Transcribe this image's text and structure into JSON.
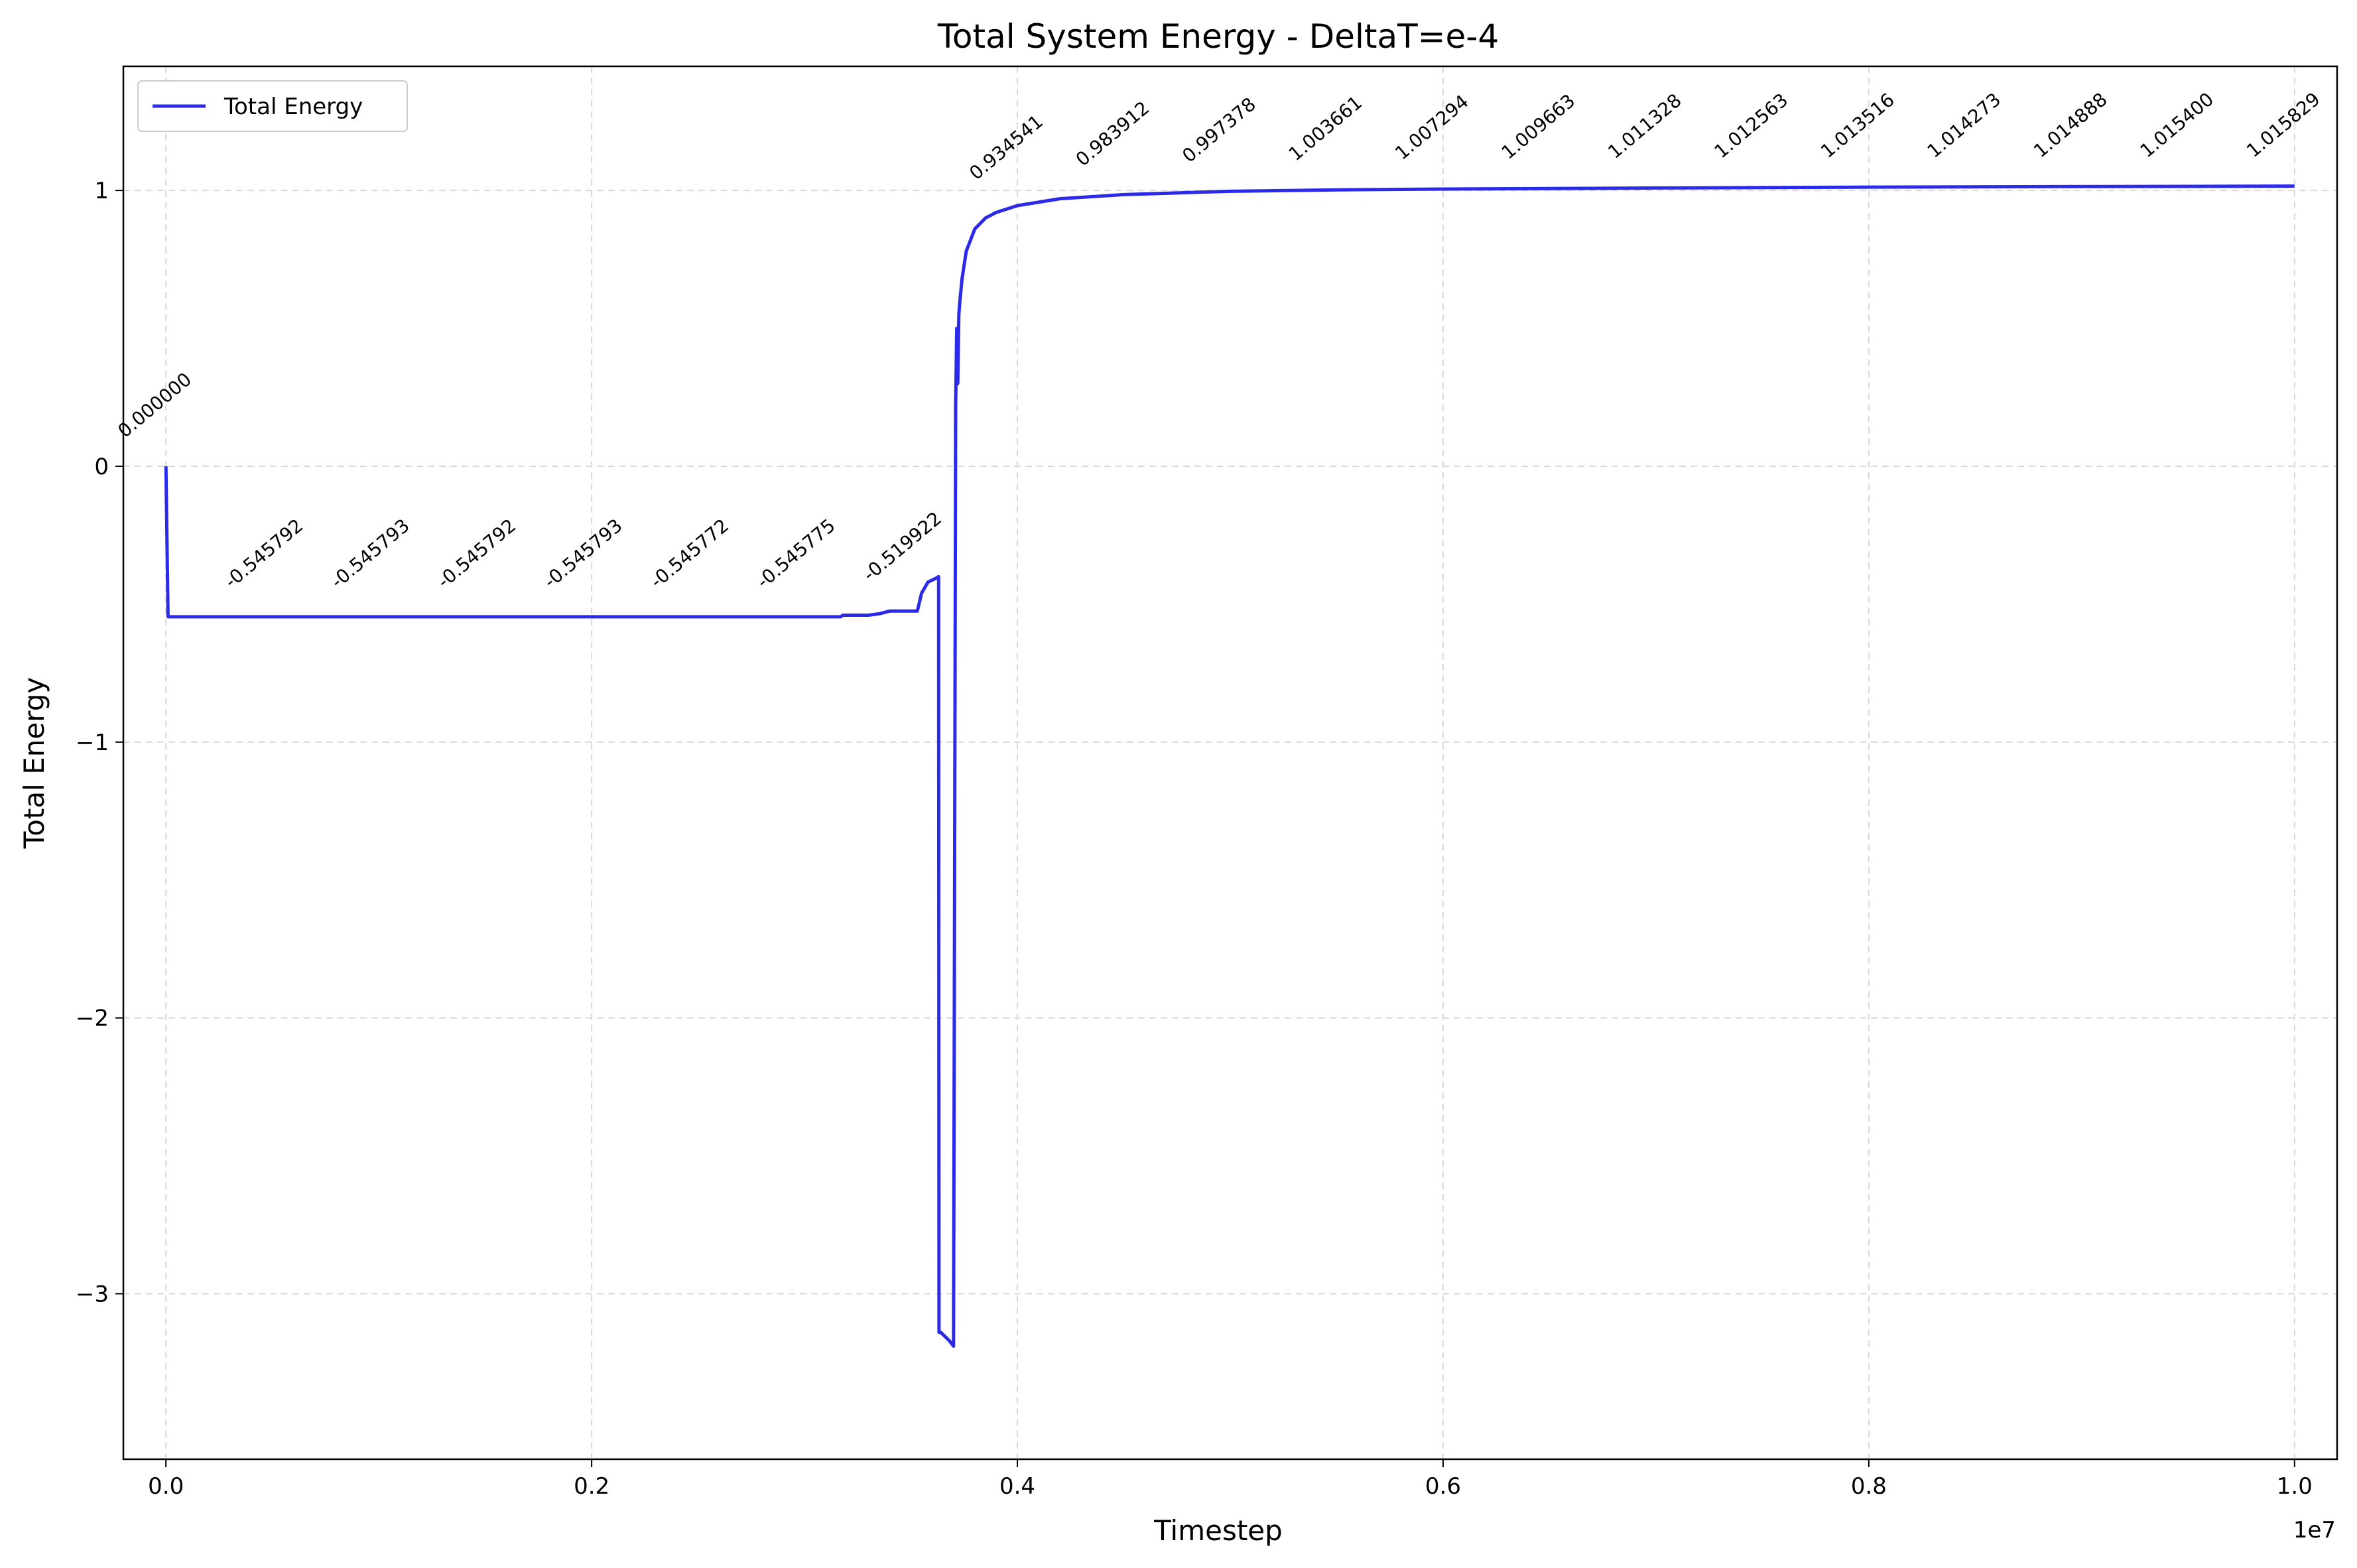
{
  "chart_data": {
    "type": "line",
    "title": "Total System Energy - DeltaT=e-4",
    "xlabel": "Timestep",
    "ylabel": "Total Energy",
    "x_offset_label": "1e7",
    "x_scale": 10000000,
    "xlim": [
      -200000,
      10200000
    ],
    "ylim": [
      -3.6,
      1.45
    ],
    "grid": true,
    "legend_position": "top-left",
    "colors": {
      "line": "#2a2ae8",
      "grid": "#d9d9d9"
    },
    "x_ticks": [
      {
        "value": 0,
        "label": "0.0"
      },
      {
        "value": 2000000,
        "label": "0.2"
      },
      {
        "value": 4000000,
        "label": "0.4"
      },
      {
        "value": 6000000,
        "label": "0.6"
      },
      {
        "value": 8000000,
        "label": "0.8"
      },
      {
        "value": 10000000,
        "label": "1.0"
      }
    ],
    "y_ticks": [
      {
        "value": 1,
        "label": "1"
      },
      {
        "value": 0,
        "label": "0"
      },
      {
        "value": -1,
        "label": "−1"
      },
      {
        "value": -2,
        "label": "−2"
      },
      {
        "value": -3,
        "label": "−3"
      }
    ],
    "series": [
      {
        "name": "Total Energy",
        "x": [
          0,
          10000,
          500000,
          1000000,
          1500000,
          2000000,
          2500000,
          3000000,
          3170000,
          3180000,
          3300000,
          3350000,
          3400000,
          3530000,
          3550000,
          3580000,
          3620000,
          3630000,
          3632000,
          3640000,
          3680000,
          3700000,
          3710000,
          3715000,
          3720000,
          3725000,
          3730000,
          3740000,
          3760000,
          3800000,
          3850000,
          3900000,
          4000000,
          4200000,
          4500000,
          5000000,
          5500000,
          6000000,
          7000000,
          8000000,
          9000000,
          10000000
        ],
        "y": [
          0,
          -0.5458,
          -0.5458,
          -0.5458,
          -0.5458,
          -0.5458,
          -0.5458,
          -0.5458,
          -0.5458,
          -0.54,
          -0.54,
          -0.535,
          -0.525,
          -0.525,
          -0.46,
          -0.42,
          -0.405,
          -0.4,
          -3.14,
          -3.14,
          -3.17,
          -3.19,
          0.22,
          0.5,
          0.3,
          0.55,
          0.6,
          0.68,
          0.78,
          0.86,
          0.9,
          0.92,
          0.945,
          0.97,
          0.985,
          0.997,
          1.002,
          1.005,
          1.009,
          1.012,
          1.014,
          1.0158
        ]
      }
    ],
    "annotations": [
      {
        "x": 0,
        "y": 0.0,
        "label": "0.000000"
      },
      {
        "x": 500000,
        "y": -0.545792,
        "label": "-0.545792"
      },
      {
        "x": 1000000,
        "y": -0.545793,
        "label": "-0.545793"
      },
      {
        "x": 1500000,
        "y": -0.545792,
        "label": "-0.545792"
      },
      {
        "x": 2000000,
        "y": -0.545793,
        "label": "-0.545793"
      },
      {
        "x": 2500000,
        "y": -0.545772,
        "label": "-0.545772"
      },
      {
        "x": 3000000,
        "y": -0.545775,
        "label": "-0.545775"
      },
      {
        "x": 3500000,
        "y": -0.519922,
        "label": "-0.519922"
      },
      {
        "x": 4000000,
        "y": 0.934541,
        "label": "0.934541"
      },
      {
        "x": 4500000,
        "y": 0.983912,
        "label": "0.983912"
      },
      {
        "x": 5000000,
        "y": 0.997378,
        "label": "0.997378"
      },
      {
        "x": 5500000,
        "y": 1.003661,
        "label": "1.003661"
      },
      {
        "x": 6000000,
        "y": 1.007294,
        "label": "1.007294"
      },
      {
        "x": 6500000,
        "y": 1.009663,
        "label": "1.009663"
      },
      {
        "x": 7000000,
        "y": 1.011328,
        "label": "1.011328"
      },
      {
        "x": 7500000,
        "y": 1.012563,
        "label": "1.012563"
      },
      {
        "x": 8000000,
        "y": 1.013516,
        "label": "1.013516"
      },
      {
        "x": 8500000,
        "y": 1.014273,
        "label": "1.014273"
      },
      {
        "x": 9000000,
        "y": 1.014888,
        "label": "1.014888"
      },
      {
        "x": 9500000,
        "y": 1.0154,
        "label": "1.015400"
      },
      {
        "x": 10000000,
        "y": 1.015829,
        "label": "1.015829"
      }
    ]
  }
}
